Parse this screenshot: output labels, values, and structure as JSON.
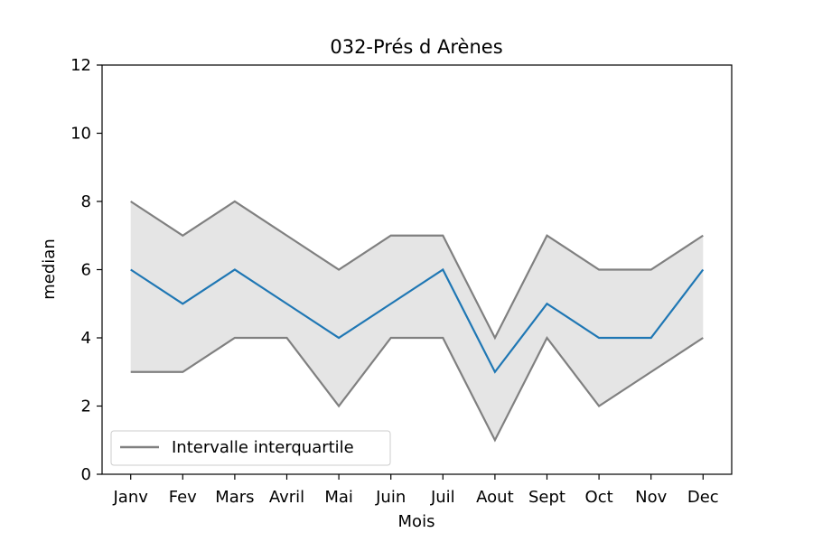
{
  "chart_data": {
    "type": "line",
    "title": "032-Prés d Arènes",
    "xlabel": "Mois",
    "ylabel": "median",
    "categories": [
      "Janv",
      "Fev",
      "Mars",
      "Avril",
      "Mai",
      "Juin",
      "Juil",
      "Aout",
      "Sept",
      "Oct",
      "Nov",
      "Dec"
    ],
    "ylim": [
      0,
      12
    ],
    "yticks": [
      0,
      2,
      4,
      6,
      8,
      10,
      12
    ],
    "grid": false,
    "legend_position": "lower-left",
    "series": [
      {
        "values": [
          6,
          5,
          6,
          5,
          4,
          5,
          6,
          3,
          5,
          4,
          4,
          6
        ],
        "color": "#1f77b4"
      },
      {
        "name": "Intervalle interquartile",
        "values": [
          8,
          7,
          8,
          7,
          6,
          7,
          7,
          4,
          7,
          6,
          6,
          7
        ],
        "color": "#808080"
      },
      {
        "values": [
          3,
          3,
          4,
          4,
          2,
          4,
          4,
          1,
          4,
          2,
          3,
          4
        ],
        "color": "#808080"
      }
    ],
    "band": {
      "upper_series": 1,
      "lower_series": 2,
      "fill_color": "#e5e5e5"
    }
  }
}
